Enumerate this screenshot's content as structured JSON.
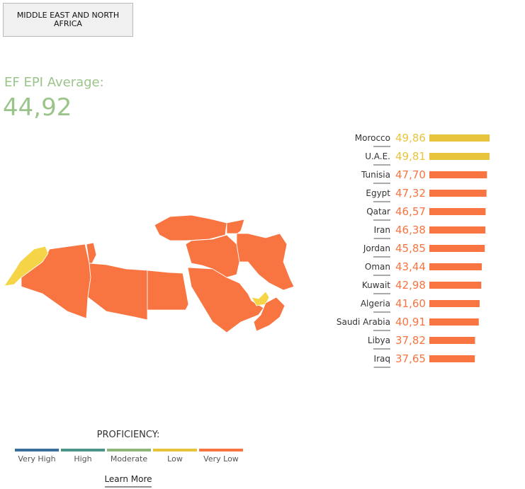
{
  "header": {
    "region_button": "MIDDLE EAST AND NORTH AFRICA",
    "average_label": "EF EPI Average:",
    "average": "44,92"
  },
  "chart_data": {
    "type": "bar",
    "orientation": "horizontal",
    "categories": [
      "Morocco",
      "U.A.E.",
      "Tunisia",
      "Egypt",
      "Qatar",
      "Iran",
      "Jordan",
      "Oman",
      "Kuwait",
      "Algeria",
      "Saudi Arabia",
      "Libya",
      "Iraq"
    ],
    "values": [
      49.86,
      49.81,
      47.7,
      47.32,
      46.57,
      46.38,
      45.85,
      43.44,
      42.98,
      41.6,
      40.91,
      37.82,
      37.65
    ],
    "value_labels": [
      "49,86",
      "49,81",
      "47,70",
      "47,32",
      "46,57",
      "46,38",
      "45,85",
      "43,44",
      "42,98",
      "41,60",
      "40,91",
      "37,82",
      "37,65"
    ],
    "colors": [
      "#e8c43c",
      "#e8c43c",
      "#f87441",
      "#f87441",
      "#f87441",
      "#f87441",
      "#f87441",
      "#f87441",
      "#f87441",
      "#f87441",
      "#f87441",
      "#f87441",
      "#f87441"
    ]
  },
  "legend": {
    "title": "PROFICIENCY:",
    "items": [
      {
        "label": "Very High",
        "color": "#3a6e9a"
      },
      {
        "label": "High",
        "color": "#4a9488"
      },
      {
        "label": "Moderate",
        "color": "#8fb67a"
      },
      {
        "label": "Low",
        "color": "#e8c43c"
      },
      {
        "label": "Very Low",
        "color": "#f87441"
      }
    ],
    "link": "Learn More"
  }
}
